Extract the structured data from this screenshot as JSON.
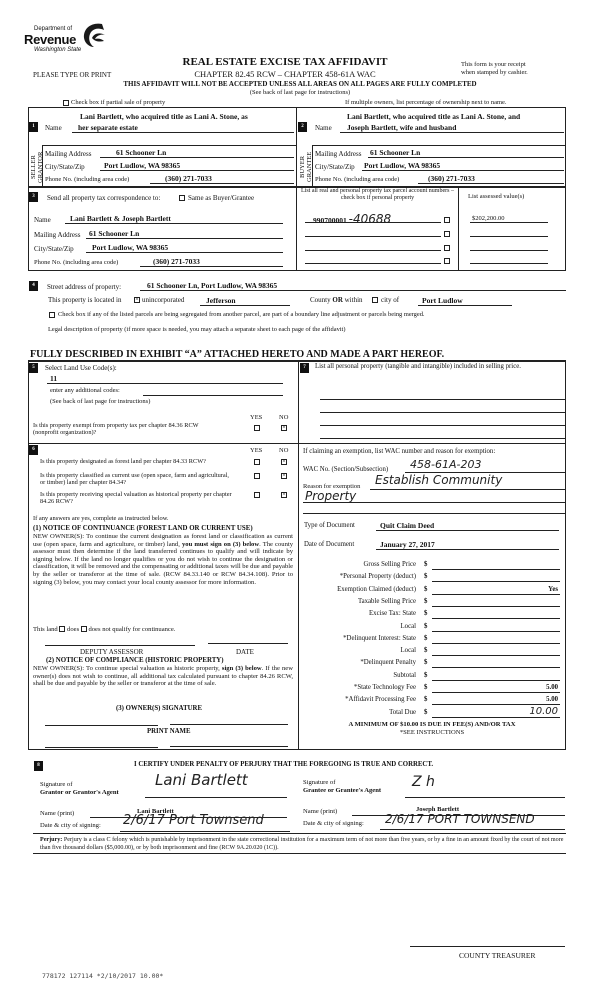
{
  "header": {
    "logo_top": "Department of",
    "logo_main": "Revenue",
    "logo_sub": "Washington State",
    "title": "REAL ESTATE EXCISE TAX AFFIDAVIT",
    "chapter": "CHAPTER 82.45 RCW – CHAPTER 458-61A WAC",
    "type_print": "PLEASE TYPE OR PRINT",
    "receipt_note_1": "This form is your receipt",
    "receipt_note_2": "when stamped by cashier.",
    "warning": "THIS AFFIDAVIT WILL NOT BE ACCEPTED UNLESS ALL AREAS ON ALL PAGES ARE FULLY COMPLETED",
    "see_back": "(See back of last page for instructions)",
    "partial_sale_label": "Check box if partial sale of property",
    "multiple_owners_note": "If multiple owners, list percentage of ownership next to name."
  },
  "seller": {
    "num": "1",
    "side_label_1": "SELLER",
    "side_label_2": "GRANTOR",
    "name_label": "Name",
    "name_line1": "Lani Bartlett, who acquired title as Lani A. Stone, as",
    "name_line2": "her separate estate",
    "mailing_label": "Mailing Address",
    "mailing": "61 Schooner Ln",
    "city_label": "City/State/Zip",
    "city": "Port Ludlow, WA 98365",
    "phone_label": "Phone No. (including area code)",
    "phone": "(360) 271-7033"
  },
  "buyer": {
    "num": "2",
    "side_label_1": "BUYER",
    "side_label_2": "GRANTEE",
    "name_label": "Name",
    "name_line1": "Lani Bartlett, who acquired title as Lani A. Stone, and",
    "name_line2": "Joseph Bartlett, wife and husband",
    "mailing_label": "Mailing Address",
    "mailing": "61 Schooner Ln",
    "city_label": "City/State/Zip",
    "city": "Port Ludlow, WA 98365",
    "phone_label": "Phone No. (including area code)",
    "phone": "(360) 271-7033"
  },
  "correspondence": {
    "num": "3",
    "label": "Send all property tax correspondence to:",
    "same_label": "Same as Buyer/Grantee",
    "same_checked": false,
    "name_label": "Name",
    "name": "Lani  Bartlett & Joseph  Bartlett",
    "mailing_label": "Mailing Address",
    "mailing": "61 Schooner Ln",
    "city_label": "City/State/Zip",
    "city": "Port Ludlow, WA 98365",
    "phone_label": "Phone No. (including area code)",
    "phone": "(360) 271-7033"
  },
  "parcels": {
    "header": "List all real and personal property tax parcel account numbers – check box if personal property",
    "assessed_header": "List assessed value(s)",
    "parcel_1": "990700001",
    "parcel_1_handwritten": "-40688",
    "assessed_1": "$202,200.00",
    "personal_checked": [
      false,
      false,
      false,
      false
    ]
  },
  "property": {
    "num": "4",
    "street_label": "Street address of property:",
    "street": "61 Schooner Ln, Port Ludlow, WA  98365",
    "located_label": "This property is located in",
    "unincorporated_label": "unincorporated",
    "unincorporated_checked": true,
    "county": "Jefferson",
    "county_or": "County",
    "or_label": "OR",
    "within_label": "within",
    "city_of_label": "city of",
    "city": "Port Ludlow",
    "segregated_label": "Check box if any of the listed parcels are being segregated from another parcel, are part of a boundary line adjustment or parcels being merged.",
    "legal_label": "Legal description of property (if more space is needed, you may attach a separate sheet to each page of the affidavit)",
    "legal_description": "FULLY DESCRIBED IN EXHIBIT “A” ATTACHED HERETO AND MADE A PART HEREOF."
  },
  "land_use": {
    "num": "5",
    "label": "Select Land Use Code(s):",
    "code": "11",
    "additional_label": "enter any additional codes:",
    "see_back": "(See back of last page for instructions)",
    "yes": "YES",
    "no": "NO",
    "exempt_q": "Is this property exempt from property tax per chapter 84.36 RCW (nonprofit organization)?",
    "exempt_answer": "NO"
  },
  "section6": {
    "num": "6",
    "yes": "YES",
    "no": "NO",
    "questions": [
      {
        "q": "Is this property designated as forest land per chapter 84.33 RCW?",
        "answer": "NO"
      },
      {
        "q": "Is this property classified as current use (open space, farm and agricultural, or timber) land per chapter 84.34?",
        "answer": "NO"
      },
      {
        "q": "Is this property receiving special valuation as historical property per chapter 84.26 RCW?",
        "answer": "NO"
      }
    ],
    "if_yes": "If any answers are yes, complete as instructed below.",
    "notice1_title": "(1) NOTICE OF CONTINUANCE (FOREST LAND OR CURRENT USE)",
    "notice1_a": "NEW OWNER(S): To continue the current designation as forest land or classification as current use (open space, farm and agriculture, or timber) land,",
    "notice1_b": "you must sign on (3) below",
    "notice1_c": ". The county assessor must then determine if the land transferred continues to qualify and will indicate by signing below. If the land no longer qualifies or you do not wish to continue the designation or classification, it will be removed and the compensating or additional taxes will be due and payable by the seller or transferor at the time of sale. (RCW 84.33.140 or RCW 84.34.108). Prior to signing (3) below, you may contact your local county assessor for more information.",
    "this_land": "This land",
    "does": "does",
    "does_not": "does not qualify for continuance.",
    "deputy_assessor": "DEPUTY ASSESSOR",
    "date": "DATE",
    "notice2_title": "(2) NOTICE OF COMPLIANCE (HISTORIC PROPERTY)",
    "notice2_a": "NEW OWNER(S): To continue special valuation as historic property,",
    "notice2_b": "sign (3) below",
    "notice2_c": ". If the new owner(s) does not wish to continue, all additional tax calculated pursuant to chapter 84.26 RCW, shall be due and payable by the seller or transferor at the time of sale.",
    "owner_sig": "(3)  OWNER(S) SIGNATURE",
    "print_name": "PRINT NAME"
  },
  "personal_property": {
    "num": "7",
    "label": "List all personal property (tangible and intangible) included in selling price."
  },
  "exemption": {
    "label": "If claiming an exemption, list WAC number and reason for exemption:",
    "wac_label": "WAC No. (Section/Subsection)",
    "wac": "458-61A-203",
    "reason_label": "Reason for exemption",
    "reason_1": "Establish Community",
    "reason_2": "Property",
    "doc_type_label": "Type of Document",
    "doc_type": "Quit Claim Deed",
    "doc_date_label": "Date of Document",
    "doc_date": "January 27, 2017"
  },
  "fees": [
    {
      "label": "Gross Selling Price",
      "value": ""
    },
    {
      "label": "*Personal Property (deduct)",
      "value": ""
    },
    {
      "label": "Exemption Claimed (deduct)",
      "value": "Yes"
    },
    {
      "label": "Taxable Selling Price",
      "value": ""
    },
    {
      "label": "Excise Tax:  State",
      "value": ""
    },
    {
      "label": "Local",
      "value": ""
    },
    {
      "label": "*Delinquent Interest:  State",
      "value": ""
    },
    {
      "label": "Local",
      "value": ""
    },
    {
      "label": "*Delinquent Penalty",
      "value": ""
    },
    {
      "label": "Subtotal",
      "value": ""
    },
    {
      "label": "*State Technology Fee",
      "value": "5.00"
    },
    {
      "label": "*Affidavit Processing Fee",
      "value": "5.00"
    },
    {
      "label": "Total Due",
      "value": "10.00"
    }
  ],
  "fees_currency": "$",
  "minimum_note": "A MINIMUM OF $10.00 IS DUE IN FEE(S) AND/OR TAX",
  "see_instructions": "*SEE INSTRUCTIONS",
  "certify": {
    "num": "8",
    "statement": "I CERTIFY UNDER PENALTY OF PERJURY THAT THE FOREGOING IS TRUE AND CORRECT.",
    "sig_of": "Signature of",
    "grantor_agent": "Grantor or Grantor's Agent",
    "grantee_agent": "Grantee or Grantee's Agent",
    "grantor_signature": "Lani Bartlett",
    "grantee_signature": "Z h",
    "name_print_label": "Name (print)",
    "grantor_name": "Lani Bartlett",
    "grantee_name": "Joseph Bartlett",
    "date_city_label": "Date & city of signing:",
    "grantor_date_city": "2/6/17 Port Townsend",
    "grantee_date_city": "2/6/17 PORT TOWNSEND",
    "perjury_label": "Perjury:",
    "perjury_text": "Perjury is a class C felony which is punishable by imprisonment in the state correctional institution for a maximum term of not more than five years, or by a fine in an amount fixed by the court of not more than five thousand dollars ($5,000.00), or by both imprisonment and fine (RCW 9A.20.020 (1C))."
  },
  "county_treasurer": "COUNTY TREASURER",
  "receipt_stamp": "778172 127114 *2/10/2017 10.00*",
  "colors": {
    "ink": "#111111",
    "paper": "#ffffff",
    "logo": "#1a1a1a"
  }
}
